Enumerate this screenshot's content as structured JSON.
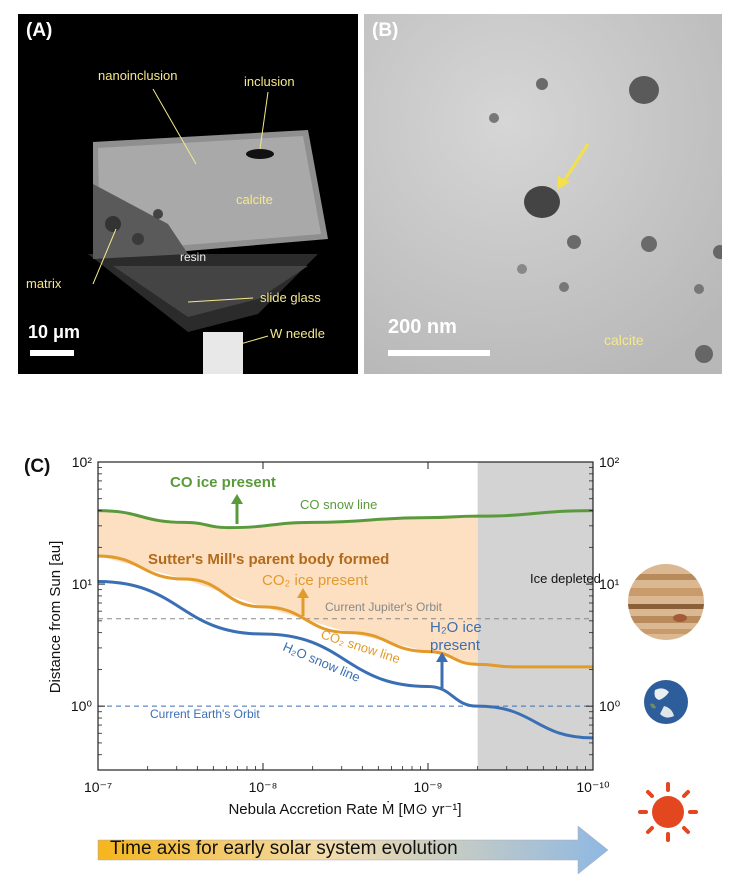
{
  "panel_a": {
    "label": "(A)",
    "annotations": {
      "nanoinclusion": "nanoinclusion",
      "inclusion": "inclusion",
      "calcite": "calcite",
      "resin": "resin",
      "matrix": "matrix",
      "slide_glass": "slide glass",
      "w_needle": "W needle"
    },
    "scale": "10 μm"
  },
  "panel_b": {
    "label": "(B)",
    "scale": "200 nm",
    "calcite": "calcite"
  },
  "panel_c": {
    "label": "(C)",
    "ice_depleted": "Ice depleted",
    "co_ice_present": "CO ice present",
    "co2_ice_present": "CO₂ ice present",
    "h2o_ice_present_1": "H₂O ice",
    "h2o_ice_present_2": "present",
    "parent_body": "Sutter's Mill's parent body formed",
    "jupiter_orbit": "Current Jupiter's Orbit",
    "earth_orbit": "Current Earth's Orbit",
    "co_snow_line": "CO snow line",
    "co2_snow_line": "CO₂ snow line",
    "h2o_snow_line": "H₂O snow line",
    "time_axis": "Time axis for early solar system evolution"
  },
  "chart_data": {
    "type": "line",
    "xlabel": "Nebula Accretion Rate  Ṁ  [M⊙ yr⁻¹]",
    "ylabel": "Distance from Sun  [au]",
    "x_scale": "log (reversed)",
    "y_scale": "log",
    "xlim": [
      1e-07,
      1e-10
    ],
    "ylim": [
      0.3,
      100
    ],
    "x_ticks": [
      "10⁻⁷",
      "10⁻⁸",
      "10⁻⁹",
      "10⁻¹⁰"
    ],
    "y_ticks": [
      "10⁰",
      "10¹",
      "10²"
    ],
    "shaded_region": {
      "label": "Ice depleted",
      "x_from": 5e-10,
      "x_to": 1e-10
    },
    "reference_lines": [
      {
        "name": "Current Jupiter's Orbit",
        "y": 5.2
      },
      {
        "name": "Current Earth's Orbit",
        "y": 1.0
      }
    ],
    "series": [
      {
        "name": "CO snow line",
        "color": "#5a9a3c",
        "points": [
          [
            1e-07,
            40
          ],
          [
            3e-08,
            32
          ],
          [
            1.6e-08,
            29
          ],
          [
            5e-09,
            32
          ],
          [
            1e-09,
            35
          ],
          [
            5e-10,
            36
          ],
          [
            1e-10,
            40
          ]
        ]
      },
      {
        "name": "CO₂ snow line",
        "color": "#e29a2b",
        "points": [
          [
            1e-07,
            17
          ],
          [
            3e-08,
            11
          ],
          [
            1e-08,
            6.5
          ],
          [
            3e-09,
            4
          ],
          [
            1e-09,
            2.8
          ],
          [
            5e-10,
            2.2
          ],
          [
            3e-10,
            2.1
          ],
          [
            1e-10,
            2.1
          ]
        ]
      },
      {
        "name": "H₂O snow line",
        "color": "#3b6fb4",
        "points": [
          [
            1e-07,
            10.5
          ],
          [
            1e-08,
            3.9
          ],
          [
            1e-09,
            1.45
          ],
          [
            5e-10,
            1.0
          ],
          [
            1e-10,
            0.55
          ]
        ]
      }
    ]
  },
  "colors": {
    "co": "#5a9a3c",
    "co2": "#e29a2b",
    "h2o": "#3b6fb4",
    "fill": "#fde0c2",
    "shade": "#d3d3d3",
    "parent_body_text": "#b26a1c"
  }
}
